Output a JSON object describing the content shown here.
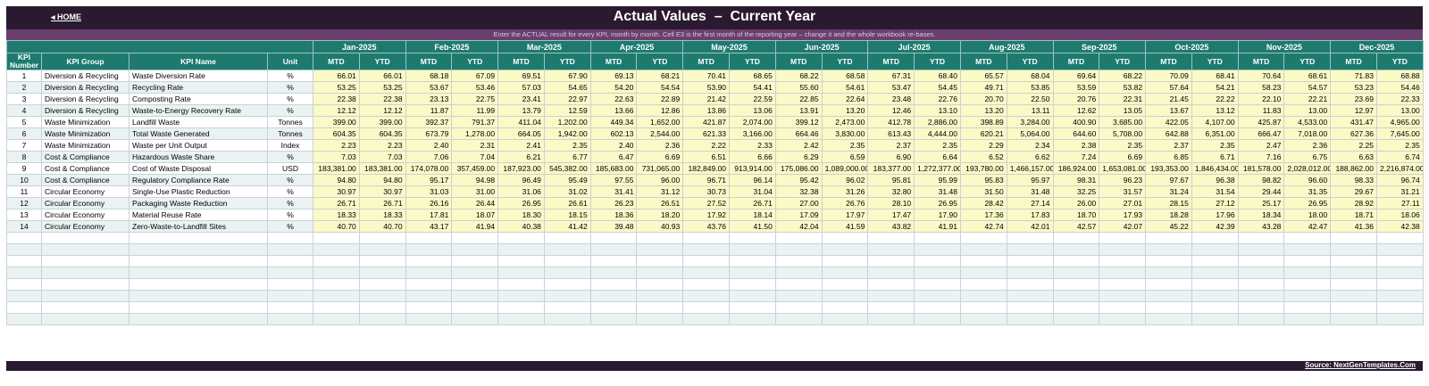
{
  "header": {
    "home_label": "◂ HOME",
    "title": "Actual Values  –  Current Year",
    "instruction": "Enter the ACTUAL result for every KPI, month by month. Cell E3 is the first month of the reporting year – change it and the whole workbook re-bases."
  },
  "columns": {
    "kpi_number": "KPI Number",
    "kpi_group": "KPI Group",
    "kpi_name": "KPI Name",
    "unit": "Unit",
    "mtd": "MTD",
    "ytd": "YTD"
  },
  "months": [
    "Jan-2025",
    "Feb-2025",
    "Mar-2025",
    "Apr-2025",
    "May-2025",
    "Jun-2025",
    "Jul-2025",
    "Aug-2025",
    "Sep-2025",
    "Oct-2025",
    "Nov-2025",
    "Dec-2025"
  ],
  "rows": [
    {
      "num": "1",
      "group": "Diversion & Recycling",
      "name": "Waste Diversion Rate",
      "unit": "%",
      "values": [
        "66.01",
        "66.01",
        "68.18",
        "67.09",
        "69.51",
        "67.90",
        "69.13",
        "68.21",
        "70.41",
        "68.65",
        "68.22",
        "68.58",
        "67.31",
        "68.40",
        "65.57",
        "68.04",
        "69.64",
        "68.22",
        "70.09",
        "68.41",
        "70.64",
        "68.61",
        "71.83",
        "68.88"
      ]
    },
    {
      "num": "2",
      "group": "Diversion & Recycling",
      "name": "Recycling Rate",
      "unit": "%",
      "values": [
        "53.25",
        "53.25",
        "53.67",
        "53.46",
        "57.03",
        "54.65",
        "54.20",
        "54.54",
        "53.90",
        "54.41",
        "55.60",
        "54.61",
        "53.47",
        "54.45",
        "49.71",
        "53.85",
        "53.59",
        "53.82",
        "57.64",
        "54.21",
        "58.23",
        "54.57",
        "53.23",
        "54.46"
      ]
    },
    {
      "num": "3",
      "group": "Diversion & Recycling",
      "name": "Composting Rate",
      "unit": "%",
      "values": [
        "22.38",
        "22.38",
        "23.13",
        "22.75",
        "23.41",
        "22.97",
        "22.63",
        "22.89",
        "21.42",
        "22.59",
        "22.85",
        "22.64",
        "23.48",
        "22.76",
        "20.70",
        "22.50",
        "20.76",
        "22.31",
        "21.45",
        "22.22",
        "22.10",
        "22.21",
        "23.69",
        "22.33"
      ]
    },
    {
      "num": "4",
      "group": "Diversion & Recycling",
      "name": "Waste-to-Energy Recovery Rate",
      "unit": "%",
      "values": [
        "12.12",
        "12.12",
        "11.87",
        "11.99",
        "13.79",
        "12.59",
        "13.66",
        "12.86",
        "13.86",
        "13.06",
        "13.91",
        "13.20",
        "12.46",
        "13.10",
        "13.20",
        "13.11",
        "12.62",
        "13.05",
        "13.67",
        "13.12",
        "11.83",
        "13.00",
        "12.97",
        "13.00"
      ]
    },
    {
      "num": "5",
      "group": "Waste Minimization",
      "name": "Landfill Waste",
      "unit": "Tonnes",
      "values": [
        "399.00",
        "399.00",
        "392.37",
        "791.37",
        "411.04",
        "1,202.00",
        "449.34",
        "1,652.00",
        "421.87",
        "2,074.00",
        "399.12",
        "2,473.00",
        "412.78",
        "2,886.00",
        "398.89",
        "3,284.00",
        "400.90",
        "3,685.00",
        "422.05",
        "4,107.00",
        "425.87",
        "4,533.00",
        "431.47",
        "4,965.00"
      ]
    },
    {
      "num": "6",
      "group": "Waste Minimization",
      "name": "Total Waste Generated",
      "unit": "Tonnes",
      "values": [
        "604.35",
        "604.35",
        "673.79",
        "1,278.00",
        "664.05",
        "1,942.00",
        "602.13",
        "2,544.00",
        "621.33",
        "3,166.00",
        "664.46",
        "3,830.00",
        "613.43",
        "4,444.00",
        "620.21",
        "5,064.00",
        "644.60",
        "5,708.00",
        "642.88",
        "6,351.00",
        "666.47",
        "7,018.00",
        "627.36",
        "7,645.00"
      ]
    },
    {
      "num": "7",
      "group": "Waste Minimization",
      "name": "Waste per Unit Output",
      "unit": "Index",
      "values": [
        "2.23",
        "2.23",
        "2.40",
        "2.31",
        "2.41",
        "2.35",
        "2.40",
        "2.36",
        "2.22",
        "2.33",
        "2.42",
        "2.35",
        "2.37",
        "2.35",
        "2.29",
        "2.34",
        "2.38",
        "2.35",
        "2.37",
        "2.35",
        "2.47",
        "2.36",
        "2.25",
        "2.35"
      ]
    },
    {
      "num": "8",
      "group": "Cost & Compliance",
      "name": "Hazardous Waste Share",
      "unit": "%",
      "values": [
        "7.03",
        "7.03",
        "7.06",
        "7.04",
        "6.21",
        "6.77",
        "6.47",
        "6.69",
        "6.51",
        "6.66",
        "6.29",
        "6.59",
        "6.90",
        "6.64",
        "6.52",
        "6.62",
        "7.24",
        "6.69",
        "6.85",
        "6.71",
        "7.16",
        "6.75",
        "6.63",
        "6.74"
      ]
    },
    {
      "num": "9",
      "group": "Cost & Compliance",
      "name": "Cost of Waste Disposal",
      "unit": "USD",
      "values": [
        "183,381.00",
        "183,381.00",
        "174,078.00",
        "357,459.00",
        "187,923.00",
        "545,382.00",
        "185,683.00",
        "731,065.00",
        "182,849.00",
        "913,914.00",
        "175,086.00",
        "1,089,000.00",
        "183,377.00",
        "1,272,377.00",
        "193,780.00",
        "1,466,157.00",
        "186,924.00",
        "1,653,081.00",
        "193,353.00",
        "1,846,434.00",
        "181,578.00",
        "2,028,012.00",
        "188,862.00",
        "2,216,874.00"
      ]
    },
    {
      "num": "10",
      "group": "Cost & Compliance",
      "name": "Regulatory Compliance Rate",
      "unit": "%",
      "values": [
        "94.80",
        "94.80",
        "95.17",
        "94.98",
        "96.49",
        "95.49",
        "97.55",
        "96.00",
        "96.71",
        "96.14",
        "95.42",
        "96.02",
        "95.81",
        "95.99",
        "95.83",
        "95.97",
        "98.31",
        "96.23",
        "97.67",
        "96.38",
        "98.82",
        "96.60",
        "98.33",
        "96.74"
      ]
    },
    {
      "num": "11",
      "group": "Circular Economy",
      "name": "Single-Use Plastic Reduction",
      "unit": "%",
      "values": [
        "30.97",
        "30.97",
        "31.03",
        "31.00",
        "31.06",
        "31.02",
        "31.41",
        "31.12",
        "30.73",
        "31.04",
        "32.38",
        "31.26",
        "32.80",
        "31.48",
        "31.50",
        "31.48",
        "32.25",
        "31.57",
        "31.24",
        "31.54",
        "29.44",
        "31.35",
        "29.67",
        "31.21"
      ]
    },
    {
      "num": "12",
      "group": "Circular Economy",
      "name": "Packaging Waste Reduction",
      "unit": "%",
      "values": [
        "26.71",
        "26.71",
        "26.16",
        "26.44",
        "26.95",
        "26.61",
        "26.23",
        "26.51",
        "27.52",
        "26.71",
        "27.00",
        "26.76",
        "28.10",
        "26.95",
        "28.42",
        "27.14",
        "26.00",
        "27.01",
        "28.15",
        "27.12",
        "25.17",
        "26.95",
        "28.92",
        "27.11"
      ]
    },
    {
      "num": "13",
      "group": "Circular Economy",
      "name": "Material Reuse Rate",
      "unit": "%",
      "values": [
        "18.33",
        "18.33",
        "17.81",
        "18.07",
        "18.30",
        "18.15",
        "18.36",
        "18.20",
        "17.92",
        "18.14",
        "17.09",
        "17.97",
        "17.47",
        "17.90",
        "17.36",
        "17.83",
        "18.70",
        "17.93",
        "18.28",
        "17.96",
        "18.34",
        "18.00",
        "18.71",
        "18.06"
      ]
    },
    {
      "num": "14",
      "group": "Circular Economy",
      "name": "Zero-Waste-to-Landfill Sites",
      "unit": "%",
      "values": [
        "40.70",
        "40.70",
        "43.17",
        "41.94",
        "40.38",
        "41.42",
        "39.48",
        "40.93",
        "43.76",
        "41.50",
        "42.04",
        "41.59",
        "43.82",
        "41.91",
        "42.74",
        "42.01",
        "42.57",
        "42.07",
        "45.22",
        "42.39",
        "43.28",
        "42.47",
        "41.36",
        "42.38"
      ]
    }
  ],
  "footer": {
    "source": "Source: NextGenTemplates.Com"
  }
}
